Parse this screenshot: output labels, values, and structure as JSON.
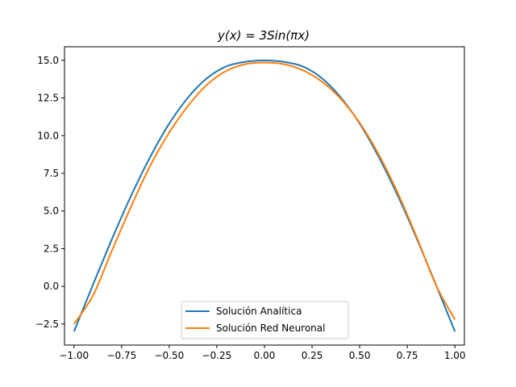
{
  "chart_data": {
    "type": "line",
    "title": "y(x) = 3Sin(πx)",
    "xlabel": "",
    "ylabel": "",
    "xlim": [
      -1.05,
      1.05
    ],
    "ylim": [
      -3.9,
      15.9
    ],
    "xticks": [
      -1.0,
      -0.75,
      -0.5,
      -0.25,
      0.0,
      0.25,
      0.5,
      0.75,
      1.0
    ],
    "xtick_labels": [
      "−1.00",
      "−0.75",
      "−0.50",
      "−0.25",
      "0.00",
      "0.25",
      "0.50",
      "0.75",
      "1.00"
    ],
    "yticks": [
      -2.5,
      0.0,
      2.5,
      5.0,
      7.5,
      10.0,
      12.5,
      15.0
    ],
    "ytick_labels": [
      "−2.5",
      "0.0",
      "2.5",
      "5.0",
      "7.5",
      "10.0",
      "12.5",
      "15.0"
    ],
    "grid": false,
    "legend_position": "bottom-center",
    "x": [
      -1.0,
      -0.9,
      -0.8,
      -0.7,
      -0.6,
      -0.5,
      -0.4,
      -0.3,
      -0.2,
      -0.1,
      0.0,
      0.1,
      0.2,
      0.3,
      0.4,
      0.5,
      0.6,
      0.7,
      0.8,
      0.9,
      1.0
    ],
    "series": [
      {
        "name": "Solución Analítica",
        "color": "#1f77b4",
        "values": [
          -3.0,
          0.12,
          3.16,
          6.02,
          8.59,
          10.8,
          12.55,
          13.83,
          14.6,
          14.9,
          15.0,
          14.9,
          14.6,
          13.83,
          12.55,
          10.8,
          8.59,
          6.02,
          3.16,
          0.12,
          -3.0
        ]
      },
      {
        "name": "Solución Red Neuronal",
        "color": "#ff7f0e",
        "values": [
          -2.5,
          -0.6,
          2.4,
          5.3,
          8.0,
          10.2,
          12.0,
          13.4,
          14.3,
          14.75,
          14.85,
          14.75,
          14.35,
          13.6,
          12.45,
          10.85,
          8.75,
          6.2,
          3.25,
          0.1,
          -2.2
        ]
      }
    ]
  }
}
